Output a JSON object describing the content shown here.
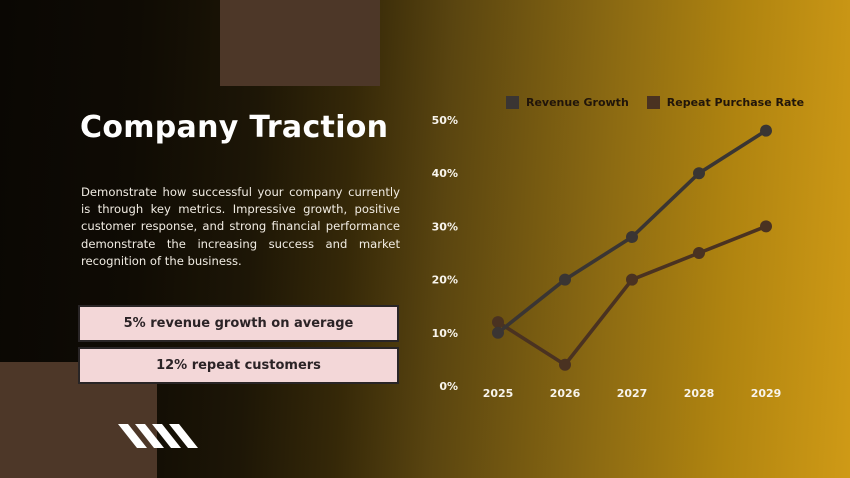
{
  "slide": {
    "title": "Company Traction",
    "description": "Demonstrate how successful your company currently is through key metrics. Impressive growth, positive customer response, and strong financial performance demonstrate the increasing success and market recognition of the business.",
    "metrics": [
      {
        "label": "5% revenue growth on average"
      },
      {
        "label": "12% repeat customers"
      }
    ]
  },
  "colors": {
    "background_left": "#0a0703",
    "background_right": "#cf9a16",
    "decor_brown": "#4d3728",
    "metric_box_fill": "#f3d7d8",
    "metric_box_border": "#292526",
    "metric_box_text": "#2b2326",
    "title_text": "#fefefe",
    "axis_label_text": "#f8f4ec",
    "legend_text": "#21150a",
    "slashes_icon": "#ffffff"
  },
  "chart_data": {
    "type": "line",
    "title": "",
    "xlabel": "",
    "ylabel": "",
    "categories": [
      "2025",
      "2026",
      "2027",
      "2028",
      "2029"
    ],
    "series": [
      {
        "name": "Revenue Growth",
        "color": "#3a3533",
        "values": [
          10,
          20,
          28,
          40,
          48
        ]
      },
      {
        "name": "Repeat Purchase Rate",
        "color": "#4a3221",
        "values": [
          12,
          4,
          20,
          25,
          30
        ]
      }
    ],
    "yticks": [
      {
        "v": 0,
        "label": "0%"
      },
      {
        "v": 10,
        "label": "10%"
      },
      {
        "v": 20,
        "label": "20%"
      },
      {
        "v": 30,
        "label": "30%"
      },
      {
        "v": 40,
        "label": "40%"
      },
      {
        "v": 50,
        "label": "50%"
      }
    ],
    "ylim": [
      0,
      50
    ],
    "grid": false,
    "legend_position": "top"
  }
}
